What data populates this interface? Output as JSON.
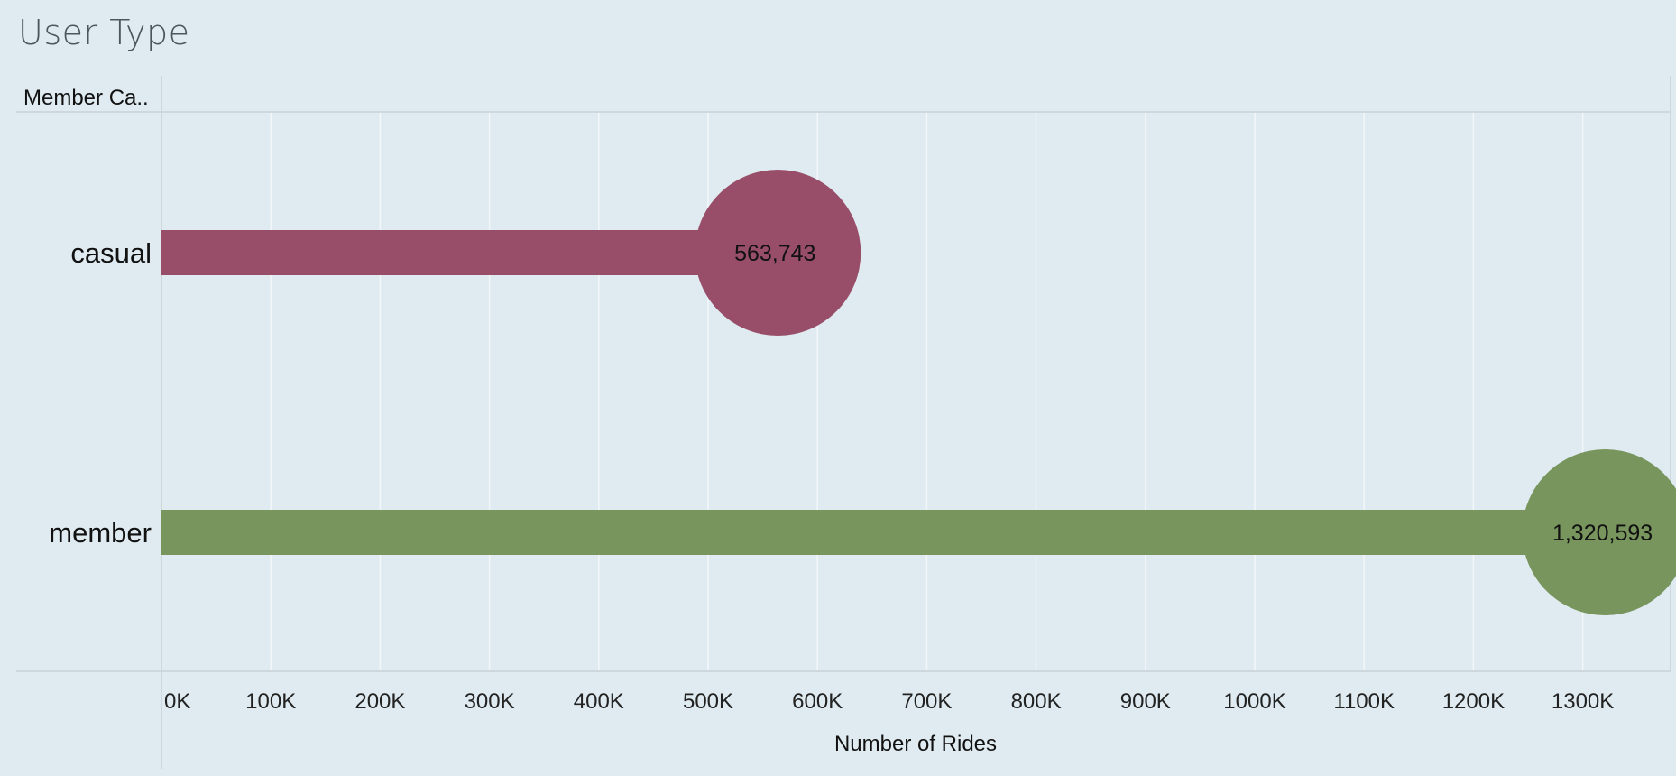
{
  "title": "User Type",
  "chart_data": {
    "type": "bar",
    "title": "User Type",
    "row_header": "Member Ca..",
    "xlabel": "Number of Rides",
    "ylabel": "",
    "categories": [
      "casual",
      "member"
    ],
    "values": [
      563743,
      1320593
    ],
    "data_labels": [
      "563,743",
      "1,320,593"
    ],
    "colors": [
      "#984e68",
      "#78955d"
    ],
    "xlim": [
      0,
      1380000
    ],
    "xticks": [
      0,
      100000,
      200000,
      300000,
      400000,
      500000,
      600000,
      700000,
      800000,
      900000,
      1000000,
      1100000,
      1200000,
      1300000
    ],
    "xtick_labels": [
      "0K",
      "100K",
      "200K",
      "300K",
      "400K",
      "500K",
      "600K",
      "700K",
      "800K",
      "900K",
      "1000K",
      "1100K",
      "1200K",
      "1300K"
    ],
    "grid": true,
    "marker": "circle-at-end"
  }
}
